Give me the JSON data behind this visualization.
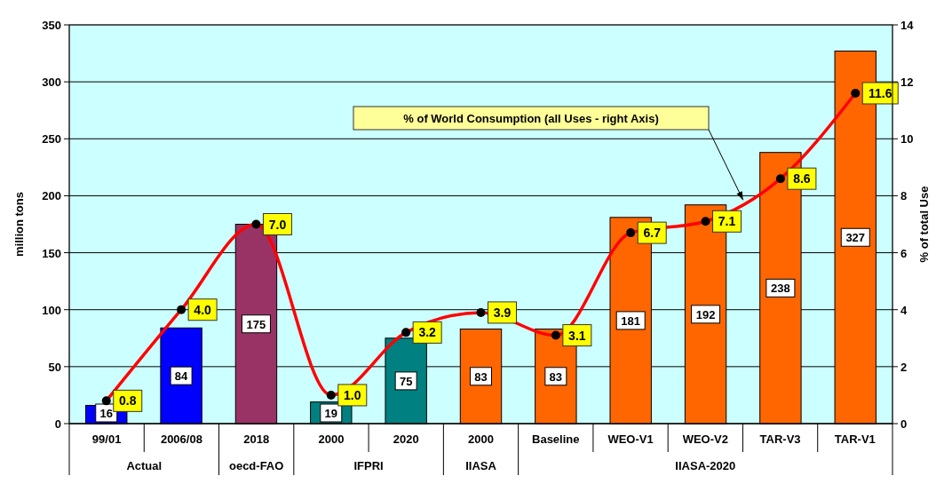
{
  "chart_data": {
    "type": "bar",
    "categories": [
      "99/01",
      "2006/08",
      "2018",
      "2000",
      "2020",
      "2000",
      "Baseline",
      "WEO-V1",
      "WEO-V2",
      "TAR-V3",
      "TAR-V1"
    ],
    "ylabel": "million tons",
    "y2label": "% of total Use",
    "ylim": [
      0,
      350
    ],
    "yticks": [
      0,
      50,
      100,
      150,
      200,
      250,
      300,
      350
    ],
    "y2lim": [
      0,
      14
    ],
    "y2ticks": [
      0,
      2,
      4,
      6,
      8,
      10,
      12,
      14
    ],
    "grid": "y",
    "annotations": [
      "Actual",
      "oecd-FAO",
      "IFPRI",
      "IIASA",
      "IIASA-2020",
      "% of World Consumption (all Uses - right Axis)"
    ],
    "series": [
      {
        "colors": [
          "#0000ff",
          "#0000ff",
          "#993366",
          "#008080",
          "#008080",
          "#ff6600",
          "#ff6600",
          "#ff6600",
          "#ff6600",
          "#ff6600",
          "#ff6600"
        ],
        "values": [
          16,
          84,
          175,
          19,
          75,
          83,
          83,
          181,
          192,
          238,
          327
        ],
        "value_labels": [
          "16",
          "84",
          "175",
          "19",
          "75",
          "83",
          "83",
          "181",
          "192",
          "238",
          "327"
        ]
      },
      {
        "type": "line",
        "axis": "y2",
        "color": "#ff0000",
        "marker": "circle",
        "values": [
          0.8,
          4.0,
          7.0,
          1.0,
          3.2,
          3.9,
          3.1,
          6.7,
          7.1,
          8.6,
          11.6
        ],
        "value_labels": [
          "0.8",
          "4.0",
          "7.0",
          "1.0",
          "3.2",
          "3.9",
          "3.1",
          "6.7",
          "7.1",
          "8.6",
          "11.6"
        ]
      }
    ]
  }
}
